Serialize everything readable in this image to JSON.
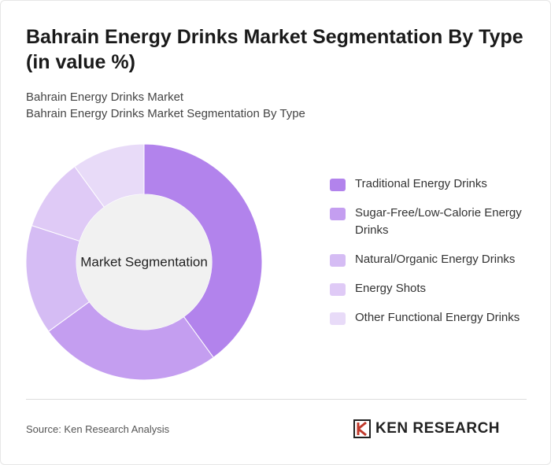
{
  "chart_data": {
    "type": "donut",
    "title": "Bahrain Energy Drinks Market Segmentation By Type (in value %)",
    "subtitle": "Bahrain Energy Drinks Market",
    "subtitle2": "Bahrain Energy Drinks Market Segmentation By Type",
    "center_label": "Market Segmentation",
    "categories": [
      "Traditional Energy Drinks",
      "Sugar-Free/Low-Calorie Energy Drinks",
      "Natural/Organic Energy Drinks",
      "Energy Shots",
      "Other Functional Energy Drinks"
    ],
    "values": [
      40,
      25,
      15,
      10,
      10
    ],
    "colors": [
      "#b283ec",
      "#c49ef0",
      "#d5bcf4",
      "#dfcaf6",
      "#e8dbf8"
    ],
    "source": "Source: Ken Research Analysis",
    "logo": "KEN RESEARCH"
  }
}
